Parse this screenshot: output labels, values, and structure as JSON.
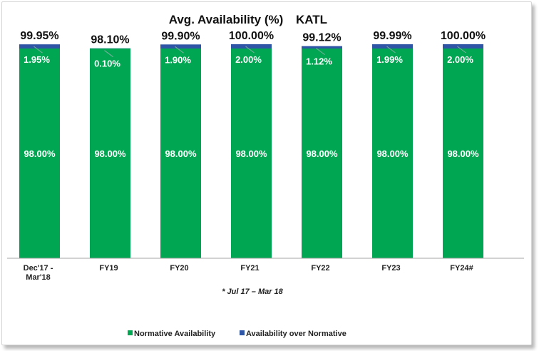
{
  "chart_data": {
    "type": "bar",
    "stacked": true,
    "title": "Avg. Availability (%)",
    "subtitle": "KATL",
    "categories": [
      "Dec'17 -\nMar'18",
      "FY19",
      "FY20",
      "FY21",
      "FY22",
      "FY23",
      "FY24#"
    ],
    "series": [
      {
        "name": "Normative Availability",
        "color": "#00a651",
        "values": [
          98.0,
          98.0,
          98.0,
          98.0,
          98.0,
          98.0,
          98.0
        ],
        "labels": [
          "98.00%",
          "98.00%",
          "98.00%",
          "98.00%",
          "98.00%",
          "98.00%",
          "98.00%"
        ]
      },
      {
        "name": "Availability over Normative",
        "color": "#2e55a6",
        "values": [
          1.95,
          0.1,
          1.9,
          2.0,
          1.12,
          1.99,
          2.0
        ],
        "labels": [
          "1.95%",
          "0.10%",
          "1.90%",
          "2.00%",
          "1.12%",
          "1.99%",
          "2.00%"
        ]
      }
    ],
    "totals": [
      "99.95%",
      "98.10%",
      "99.90%",
      "100.00%",
      "99.12%",
      "99.99%",
      "100.00%"
    ],
    "footnote": "* Jul 17 – Mar 18",
    "legend_position": "bottom",
    "grid": false
  }
}
